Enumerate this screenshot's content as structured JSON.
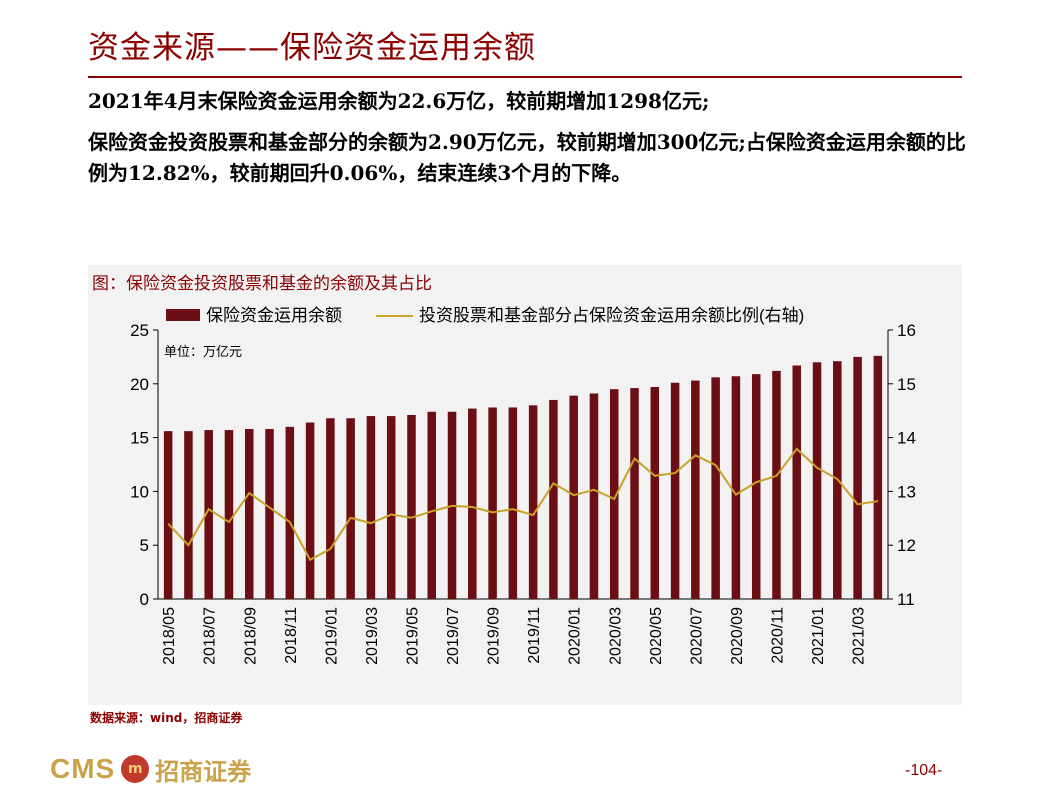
{
  "slide": {
    "title": "资金来源——保险资金运用余额",
    "para1": "2021年4月末保险资金运用余额为22.6万亿，较前期增加1298亿元;",
    "para2": "保险资金投资股票和基金部分的余额为2.90万亿元，较前期增加300亿元;占保险资金运用余额的比例为12.82%，较前期回升0.06%，结束连续3个月的下降。",
    "source": "数据来源：wind，招商证券",
    "logo_latin": "CMS",
    "logo_mark": "m",
    "logo_cn": "招商证券",
    "page_number": "-104-"
  },
  "colors": {
    "accent": "#8b0000",
    "bar": "#6b0f14",
    "line": "#c9a227",
    "chart_bg": "#f2f2f2"
  },
  "chart_data": {
    "type": "bar",
    "caption": "图：保险资金投资股票和基金的余额及其占比",
    "unit_label": "单位：万亿元",
    "categories": [
      "2018/05",
      "2018/06",
      "2018/07",
      "2018/08",
      "2018/09",
      "2018/10",
      "2018/11",
      "2018/12",
      "2019/01",
      "2019/02",
      "2019/03",
      "2019/04",
      "2019/05",
      "2019/06",
      "2019/07",
      "2019/08",
      "2019/09",
      "2019/10",
      "2019/11",
      "2019/12",
      "2020/01",
      "2020/02",
      "2020/03",
      "2020/04",
      "2020/05",
      "2020/06",
      "2020/07",
      "2020/08",
      "2020/09",
      "2020/10",
      "2020/11",
      "2020/12",
      "2021/01",
      "2021/02",
      "2021/03",
      "2021/04"
    ],
    "xtick_labels": [
      "2018/05",
      "2018/07",
      "2018/09",
      "2018/11",
      "2019/01",
      "2019/03",
      "2019/05",
      "2019/07",
      "2019/09",
      "2019/11",
      "2020/01",
      "2020/03",
      "2020/05",
      "2020/07",
      "2020/09",
      "2020/11",
      "2021/01",
      "2021/03"
    ],
    "series": [
      {
        "name": "保险资金运用余额",
        "type": "bar",
        "axis": "left",
        "values": [
          15.6,
          15.6,
          15.7,
          15.7,
          15.8,
          15.8,
          16.0,
          16.4,
          16.8,
          16.8,
          17.0,
          17.0,
          17.1,
          17.4,
          17.4,
          17.7,
          17.8,
          17.8,
          18.0,
          18.5,
          18.9,
          19.1,
          19.5,
          19.6,
          19.7,
          20.1,
          20.3,
          20.6,
          20.7,
          20.9,
          21.2,
          21.7,
          22.0,
          22.1,
          22.5,
          22.6
        ]
      },
      {
        "name": "投资股票和基金部分占保险资金运用余额比例(右轴)",
        "type": "line",
        "axis": "right",
        "values": [
          12.4,
          12.0,
          12.67,
          12.43,
          12.97,
          12.7,
          12.43,
          11.73,
          11.93,
          12.51,
          12.41,
          12.57,
          12.51,
          12.63,
          12.73,
          12.71,
          12.61,
          12.67,
          12.56,
          13.15,
          12.93,
          13.03,
          12.86,
          13.61,
          13.29,
          13.34,
          13.67,
          13.49,
          12.94,
          13.17,
          13.29,
          13.79,
          13.44,
          13.23,
          12.76,
          12.82
        ]
      }
    ],
    "yleft": {
      "min": 0,
      "max": 25,
      "ticks": [
        0,
        5,
        10,
        15,
        20,
        25
      ]
    },
    "yright": {
      "min": 11,
      "max": 16,
      "ticks": [
        11,
        12,
        13,
        14,
        15,
        16
      ]
    }
  }
}
